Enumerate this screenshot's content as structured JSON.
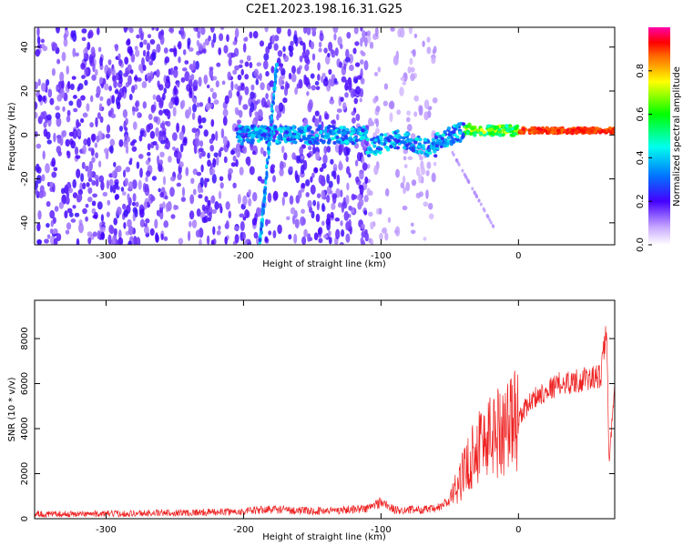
{
  "title": "C2E1.2023.198.16.31.G25",
  "colors": {
    "line": "#ee2222",
    "frame": "#000000"
  },
  "chart_data": [
    {
      "type": "heatmap",
      "xlabel": "Height of straight line (km)",
      "ylabel": "Frequency (Hz)",
      "xlim": [
        -352,
        70
      ],
      "ylim": [
        -50,
        49
      ],
      "x_ticks": [
        -300,
        -200,
        -100,
        0
      ],
      "y_ticks": [
        -40,
        -20,
        0,
        20,
        40
      ],
      "colorbar": {
        "label": "Normalized spectral amplitude",
        "range": [
          0,
          1
        ],
        "ticks": [
          "0.0",
          "0.2",
          "0.4",
          "0.6",
          "0.8"
        ]
      },
      "features": [
        {
          "name": "diagonal streak",
          "from": [
            -188,
            -50
          ],
          "to": [
            -176,
            32
          ]
        },
        {
          "name": "zero-frequency band",
          "x_range": [
            -200,
            70
          ],
          "y_center": 0
        }
      ]
    },
    {
      "type": "line",
      "xlabel": "Height of straight line (km)",
      "ylabel": "SNR (10 * v/v)",
      "xlim": [
        -352,
        70
      ],
      "ylim": [
        0,
        9700
      ],
      "x_ticks": [
        -300,
        -200,
        -100,
        0
      ],
      "y_ticks": [
        0,
        2000,
        4000,
        6000,
        8000
      ],
      "series": [
        {
          "x": [
            -352,
            -300,
            -250,
            -200,
            -180,
            -150,
            -110,
            -100,
            -90,
            -60,
            -50,
            -40,
            -30,
            -20,
            -10,
            0,
            10,
            20,
            30,
            40,
            50,
            60,
            64,
            66,
            70
          ],
          "y": [
            200,
            220,
            260,
            320,
            420,
            330,
            450,
            750,
            380,
            420,
            800,
            2000,
            3300,
            3700,
            4100,
            4500,
            5300,
            5700,
            6000,
            6100,
            6200,
            6300,
            8500,
            2300,
            6200
          ]
        }
      ]
    }
  ]
}
